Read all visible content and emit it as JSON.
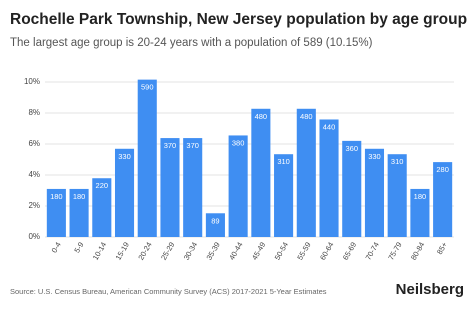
{
  "chart_data": {
    "type": "bar",
    "title": "Rochelle Park Township, New Jersey population by age group",
    "subtitle": "The largest age group is 20-24 years with a population of 589 (10.15%)",
    "source": "Source: U.S. Census Bureau, American Community Survey (ACS) 2017-2021 5-Year Estimates",
    "brand": "Neilsberg",
    "categories": [
      "0-4",
      "5-9",
      "10-14",
      "15-19",
      "20-24",
      "25-29",
      "30-34",
      "35-39",
      "40-44",
      "45-49",
      "50-54",
      "55-59",
      "60-64",
      "65-69",
      "70-74",
      "75-79",
      "80-84",
      "85+"
    ],
    "values": [
      3.1,
      3.1,
      3.79,
      5.69,
      10.15,
      6.38,
      6.38,
      1.53,
      6.55,
      8.27,
      5.34,
      8.27,
      7.58,
      6.2,
      5.69,
      5.34,
      3.1,
      4.83
    ],
    "population": [
      180,
      180,
      220,
      330,
      590,
      370,
      370,
      89,
      380,
      480,
      310,
      480,
      440,
      360,
      330,
      310,
      180,
      280
    ],
    "color": "#3f8ef2",
    "ylim": [
      0,
      10.9
    ],
    "yticks": [
      {
        "value": 0,
        "label": "0%"
      },
      {
        "value": 2,
        "label": "2%"
      },
      {
        "value": 4,
        "label": "4%"
      },
      {
        "value": 6,
        "label": "6%"
      },
      {
        "value": 8,
        "label": "8%"
      },
      {
        "value": 10,
        "label": "10%"
      }
    ],
    "grid": true
  }
}
